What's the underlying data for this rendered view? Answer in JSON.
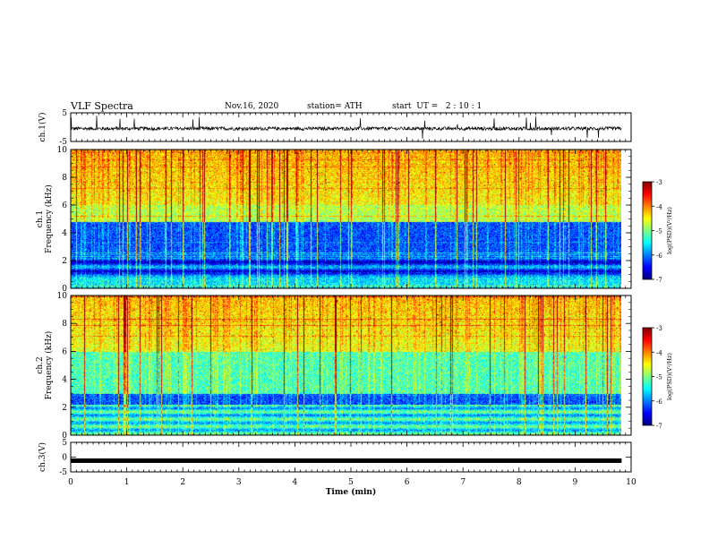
{
  "header": {
    "title": "VLF Spectra",
    "date": "Nov.16, 2020",
    "station": "station= ATH",
    "start": "start  UT =   2 : 10 : 1"
  },
  "chart_data": [
    {
      "type": "line",
      "name": "ch1-waveform",
      "ylabel": "ch.1(V)",
      "ylim": [
        -5,
        5
      ],
      "yticks": [
        "5",
        "-5"
      ],
      "xlim": [
        0,
        10
      ],
      "xticks": [
        "0",
        "1",
        "2",
        "3",
        "4",
        "5",
        "6",
        "7",
        "8",
        "9",
        "10"
      ],
      "series": [
        {
          "values": "noisy trace around -0.5 V with spikes",
          "baseline": -0.5,
          "amplitude": 1.2,
          "x_end": 9.83
        }
      ]
    },
    {
      "type": "heatmap",
      "name": "ch1-spectrogram",
      "ylabel": "ch.1 Frequency (kHz)",
      "ylim": [
        0,
        10
      ],
      "yticks": [
        "0",
        "2",
        "4",
        "6",
        "8",
        "10"
      ],
      "xlim": [
        0,
        10
      ],
      "x_end": 9.83,
      "colorbar": {
        "label": "log(PSD)(V²/Hz)",
        "range": [
          -7,
          -3
        ],
        "ticks": [
          "-3",
          "-4",
          "-5",
          "-6",
          "-7"
        ]
      }
    },
    {
      "type": "heatmap",
      "name": "ch2-spectrogram",
      "ylabel": "ch.2 Frequency (kHz)",
      "ylim": [
        0,
        10
      ],
      "yticks": [
        "0",
        "2",
        "4",
        "6",
        "8",
        "10"
      ],
      "xlim": [
        0,
        10
      ],
      "x_end": 9.83,
      "colorbar": {
        "label": "log(PSD)(V²/Hz)",
        "range": [
          -7,
          -3
        ],
        "ticks": [
          "-3",
          "-4",
          "-5",
          "-6",
          "-7"
        ]
      }
    },
    {
      "type": "line",
      "name": "ch3-waveform",
      "ylabel": "ch.3(V)",
      "ylim": [
        -5,
        5
      ],
      "yticks": [
        "5",
        "0",
        "-5"
      ],
      "xlim": [
        0,
        10
      ],
      "xlabel": "Time  (min)",
      "xticks": [
        "0",
        "1",
        "2",
        "3",
        "4",
        "5",
        "6",
        "7",
        "8",
        "9",
        "10"
      ],
      "series": [
        {
          "values": "flat band near -1.2 V",
          "level": -1.2,
          "x_end": 9.83
        }
      ]
    }
  ]
}
